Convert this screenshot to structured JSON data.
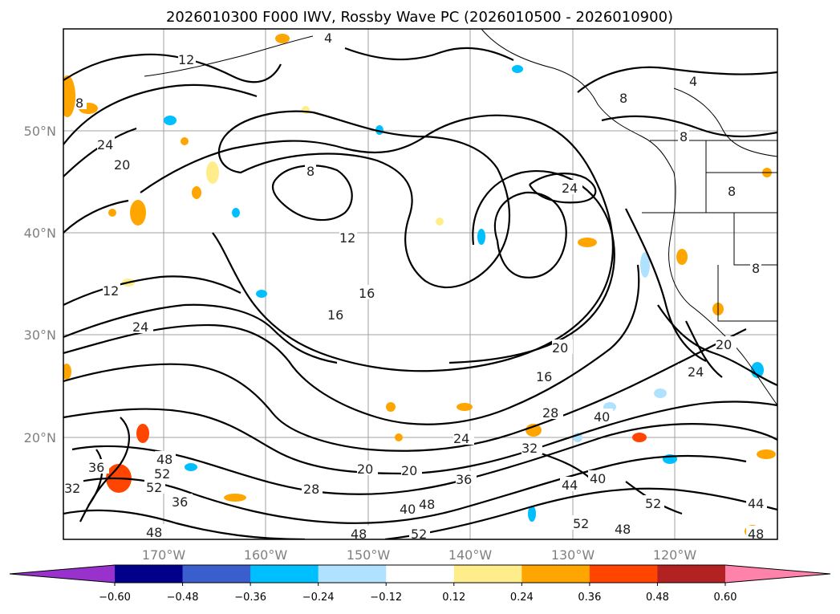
{
  "title": "2026010300 F000 IWV, Rossby Wave PC (2026010500 - 2026010900)",
  "map": {
    "lat_labels": [
      "50°N",
      "40°N",
      "30°N",
      "20°N"
    ],
    "lon_labels": [
      "170°W",
      "160°W",
      "150°W",
      "140°W",
      "130°W",
      "120°W"
    ],
    "contour_labels": [
      "4",
      "8",
      "12",
      "16",
      "20",
      "24",
      "28",
      "32",
      "36",
      "40",
      "44",
      "48",
      "52"
    ]
  },
  "colorbar": {
    "ticks": [
      "−0.60",
      "−0.48",
      "−0.36",
      "−0.24",
      "−0.12",
      "0.12",
      "0.24",
      "0.36",
      "0.48",
      "0.60"
    ],
    "colors": [
      "#9932cc",
      "#00008b",
      "#3a5fcd",
      "#00bfff",
      "#b0e2ff",
      "#ffffff",
      "#ffec8b",
      "#ffa500",
      "#ff4500",
      "#b22222",
      "#ff82ab"
    ]
  }
}
